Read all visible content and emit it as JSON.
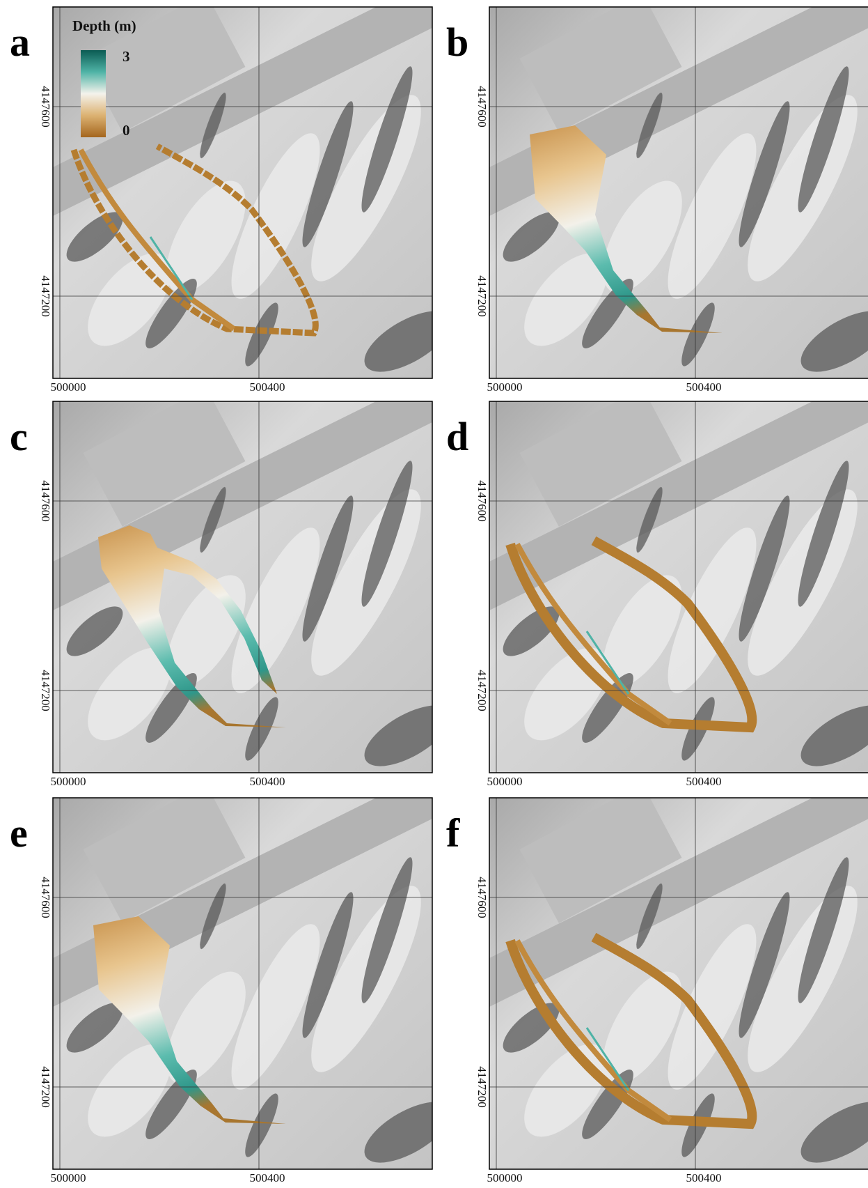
{
  "legend": {
    "title": "Depth (m)",
    "max": 3,
    "min": 0
  },
  "axes": {
    "x_ticks": [
      500000,
      500400
    ],
    "y_ticks": [
      4147600,
      4147200
    ]
  },
  "panels": [
    {
      "label": "a"
    },
    {
      "label": "b"
    },
    {
      "label": "c"
    },
    {
      "label": "d"
    },
    {
      "label": "e"
    },
    {
      "label": "f"
    }
  ]
}
